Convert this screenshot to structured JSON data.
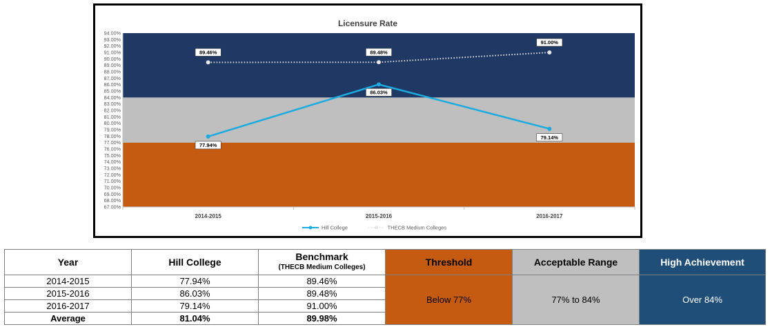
{
  "chart_data": {
    "type": "line",
    "title": "Licensure Rate",
    "categories": [
      "2014-2015",
      "2015-2016",
      "2016-2017"
    ],
    "series": [
      {
        "name": "Hill College",
        "values": [
          77.94,
          86.03,
          79.14
        ],
        "labels": [
          "77.94%",
          "86.03%",
          "79.14%"
        ],
        "color": "#1aabe0",
        "style": "solid"
      },
      {
        "name": "THECB Medium Colleges",
        "values": [
          89.46,
          89.48,
          91.0
        ],
        "labels": [
          "89.46%",
          "89.48%",
          "91.00%"
        ],
        "color": "#e6e6e6",
        "style": "dotted"
      }
    ],
    "ylim": [
      67,
      94
    ],
    "ytick_step": 1,
    "ytick_format": "{v}.00%",
    "bands": [
      {
        "name": "Threshold",
        "from": 67,
        "to": 77,
        "color": "#c55a11"
      },
      {
        "name": "Acceptable Range",
        "from": 77,
        "to": 84,
        "color": "#bfbfbf"
      },
      {
        "name": "High Achievement",
        "from": 84,
        "to": 94,
        "color": "#203864"
      }
    ],
    "legend_position": "bottom-center",
    "grid": false
  },
  "table": {
    "headers": {
      "year": "Year",
      "hill": "Hill College",
      "benchmark": "Benchmark",
      "benchmark_sub": "(THECB Medium Colleges)",
      "threshold": "Threshold",
      "acceptable": "Acceptable Range",
      "high": "High Achievement"
    },
    "rows": [
      {
        "year": "2014-2015",
        "hill": "77.94%",
        "benchmark": "89.46%"
      },
      {
        "year": "2015-2016",
        "hill": "86.03%",
        "benchmark": "89.48%"
      },
      {
        "year": "2016-2017",
        "hill": "79.14%",
        "benchmark": "91.00%"
      }
    ],
    "average": {
      "year": "Average",
      "hill": "81.04%",
      "benchmark": "89.98%"
    },
    "threshold_text": "Below 77%",
    "acceptable_text": "77% to 84%",
    "high_text": "Over 84%"
  }
}
